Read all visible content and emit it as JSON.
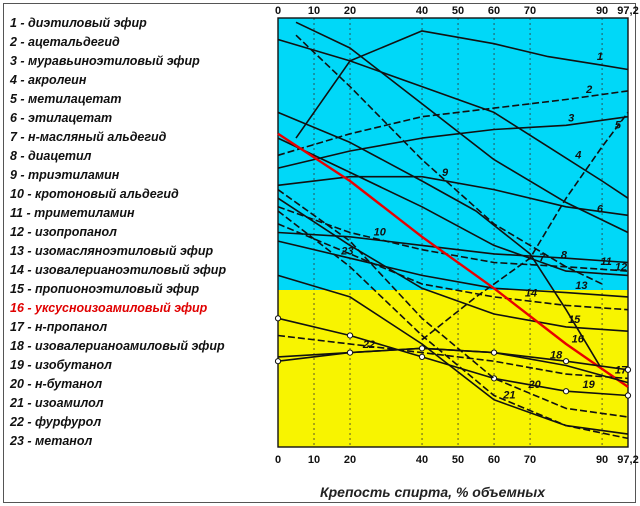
{
  "legend": [
    {
      "num": "1",
      "label": "диэтиловый эфир"
    },
    {
      "num": "2",
      "label": "ацетальдегид"
    },
    {
      "num": "3",
      "label": "муравьиноэтиловый эфир"
    },
    {
      "num": "4",
      "label": "акролеин"
    },
    {
      "num": "5",
      "label": "метилацетат"
    },
    {
      "num": "6",
      "label": "этилацетат"
    },
    {
      "num": "7",
      "label": "н-масляный альдегид"
    },
    {
      "num": "8",
      "label": "диацетил"
    },
    {
      "num": "9",
      "label": "триэтиламин"
    },
    {
      "num": "10",
      "label": "кротоновый альдегид"
    },
    {
      "num": "11",
      "label": "триметиламин"
    },
    {
      "num": "12",
      "label": "изопропанол"
    },
    {
      "num": "13",
      "label": "изомасляноэтиловый эфир"
    },
    {
      "num": "14",
      "label": "изовалерианоэтиловый эфир"
    },
    {
      "num": "15",
      "label": "пропионоэтиловый эфир"
    },
    {
      "num": "16",
      "label": "уксусноизоамиловый эфир",
      "highlight": true
    },
    {
      "num": "17",
      "label": "н-пропанол"
    },
    {
      "num": "18",
      "label": "изовалерианоамиловый эфир"
    },
    {
      "num": "19",
      "label": "изобутанол"
    },
    {
      "num": "20",
      "label": "н-бутанол"
    },
    {
      "num": "21",
      "label": "изоамилол"
    },
    {
      "num": "22",
      "label": "фурфурол"
    },
    {
      "num": "23",
      "label": "метанол"
    }
  ],
  "chart_data": {
    "type": "line",
    "xlabel": "Крепость спирта, % объемных",
    "xlim": [
      0,
      97.2
    ],
    "x_ticks": [
      "0",
      "10",
      "20",
      "40",
      "50",
      "60",
      "70",
      "90",
      "97,2"
    ],
    "regions": {
      "upper": "#00d8f8",
      "lower": "#f8f400"
    },
    "colors": {
      "lines": "#111111",
      "highlight": "#e80000"
    },
    "series": [
      {
        "name": "1",
        "x": [
          5,
          20,
          40,
          60,
          75,
          90,
          97.2
        ],
        "y": [
          0.72,
          0.9,
          0.97,
          0.94,
          0.91,
          0.89,
          0.88
        ]
      },
      {
        "name": "2",
        "x": [
          0,
          20,
          40,
          60,
          80,
          97.2
        ],
        "y": [
          0.68,
          0.73,
          0.77,
          0.79,
          0.81,
          0.83
        ]
      },
      {
        "name": "3",
        "x": [
          0,
          20,
          40,
          60,
          80,
          97.2
        ],
        "y": [
          0.65,
          0.69,
          0.72,
          0.74,
          0.75,
          0.77
        ]
      },
      {
        "name": "4",
        "x": [
          0,
          20,
          40,
          60,
          75,
          90,
          97.2
        ],
        "y": [
          0.95,
          0.9,
          0.84,
          0.78,
          0.7,
          0.62,
          0.58
        ]
      },
      {
        "name": "5",
        "x": [
          40,
          55,
          70,
          80,
          90,
          97.2
        ],
        "y": [
          0.25,
          0.35,
          0.44,
          0.58,
          0.7,
          0.78
        ]
      },
      {
        "name": "6",
        "x": [
          5,
          20,
          40,
          60,
          80,
          97.2
        ],
        "y": [
          0.99,
          0.93,
          0.8,
          0.67,
          0.57,
          0.5
        ]
      },
      {
        "name": "7",
        "x": [
          0,
          20,
          40,
          55,
          70,
          80,
          90
        ],
        "y": [
          0.78,
          0.71,
          0.62,
          0.55,
          0.45,
          0.32,
          0.18
        ]
      },
      {
        "name": "8",
        "x": [
          5,
          20,
          40,
          60,
          80,
          90
        ],
        "y": [
          0.96,
          0.84,
          0.67,
          0.52,
          0.42,
          0.38
        ]
      },
      {
        "name": "9",
        "x": [
          0,
          20,
          40,
          60,
          80,
          97.2
        ],
        "y": [
          0.61,
          0.63,
          0.63,
          0.6,
          0.56,
          0.54
        ]
      },
      {
        "name": "10",
        "x": [
          0,
          20,
          40,
          60,
          80,
          97.2
        ],
        "y": [
          0.5,
          0.49,
          0.47,
          0.45,
          0.44,
          0.43
        ]
      },
      {
        "name": "11",
        "x": [
          0,
          20,
          40,
          60,
          80,
          97.2
        ],
        "y": [
          0.56,
          0.5,
          0.46,
          0.43,
          0.42,
          0.41
        ]
      },
      {
        "name": "12",
        "x": [
          0,
          20,
          40,
          60,
          80,
          97.2
        ],
        "y": [
          0.72,
          0.64,
          0.56,
          0.47,
          0.41,
          0.4
        ]
      },
      {
        "name": "13",
        "x": [
          0,
          20,
          40,
          60,
          80,
          97.2
        ],
        "y": [
          0.48,
          0.44,
          0.4,
          0.37,
          0.36,
          0.35
        ]
      },
      {
        "name": "14",
        "x": [
          0,
          20,
          40,
          60,
          80,
          97.2
        ],
        "y": [
          0.52,
          0.45,
          0.38,
          0.35,
          0.33,
          0.32
        ]
      },
      {
        "name": "15",
        "x": [
          0,
          20,
          40,
          60,
          80,
          97.2
        ],
        "y": [
          0.58,
          0.47,
          0.37,
          0.31,
          0.28,
          0.27
        ]
      },
      {
        "name": "16",
        "x": [
          0,
          20,
          40,
          60,
          80,
          97.2
        ],
        "y": [
          0.73,
          0.62,
          0.49,
          0.37,
          0.24,
          0.14
        ]
      },
      {
        "name": "17",
        "x": [
          0,
          20,
          40,
          60,
          80,
          97.2
        ],
        "y": [
          0.26,
          0.24,
          0.22,
          0.2,
          0.17,
          0.16
        ]
      },
      {
        "name": "18",
        "x": [
          0,
          20,
          40,
          60,
          80,
          97.2
        ],
        "y": [
          0.21,
          0.22,
          0.23,
          0.22,
          0.19,
          0.15
        ]
      },
      {
        "name": "19",
        "x": [
          0,
          20,
          40,
          60,
          80,
          97.2
        ],
        "y": [
          0.3,
          0.26,
          0.21,
          0.16,
          0.13,
          0.12
        ]
      },
      {
        "name": "20",
        "x": [
          0,
          20,
          40,
          60,
          80,
          97.2
        ],
        "y": [
          0.6,
          0.48,
          0.3,
          0.16,
          0.09,
          0.07
        ]
      },
      {
        "name": "21",
        "x": [
          0,
          20,
          40,
          60,
          80,
          97.2
        ],
        "y": [
          0.4,
          0.35,
          0.24,
          0.11,
          0.05,
          0.03
        ]
      },
      {
        "name": "22",
        "x": [
          0,
          20,
          40,
          60,
          80,
          97.2
        ],
        "y": [
          0.2,
          0.22,
          0.23,
          0.22,
          0.2,
          0.18
        ]
      },
      {
        "name": "23",
        "x": [
          0,
          20,
          40,
          60,
          80,
          97.2
        ],
        "y": [
          0.55,
          0.42,
          0.26,
          0.12,
          0.05,
          0.02
        ]
      }
    ]
  }
}
